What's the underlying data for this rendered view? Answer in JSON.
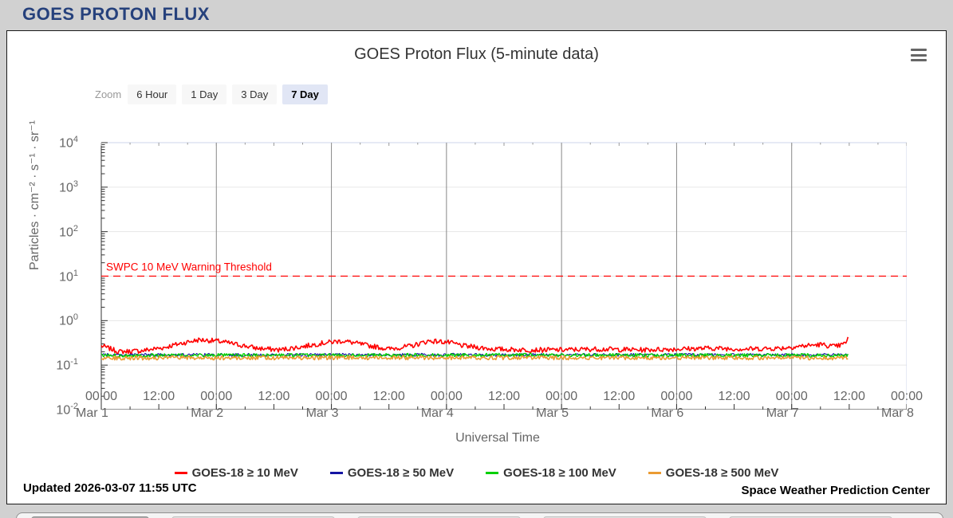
{
  "page": {
    "header_title": "GOES PROTON FLUX",
    "header_color": "#26417c",
    "background_color": "#d1d1d1"
  },
  "panel": {
    "updated": "Updated 2026-03-07 11:55 UTC",
    "credit": "Space Weather Prediction Center",
    "menu_icon": "hamburger-menu-icon"
  },
  "zoom_controls": {
    "label": "Zoom",
    "buttons": [
      {
        "label": "6 Hour",
        "selected": false
      },
      {
        "label": "1 Day",
        "selected": false
      },
      {
        "label": "3 Day",
        "selected": false
      },
      {
        "label": "7 Day",
        "selected": true
      }
    ]
  },
  "chart_data": {
    "type": "line",
    "title": "GOES Proton Flux (5-minute data)",
    "xlabel": "Universal Time",
    "ylabel": "Particles · cm⁻² · s⁻¹ · sr⁻¹",
    "y_axis": {
      "scale": "log",
      "min": 0.01,
      "max": 10000,
      "tick_exponents": [
        4,
        3,
        2,
        1,
        0,
        -1,
        -2
      ],
      "grid": true
    },
    "x_axis": {
      "range_days": 7,
      "grid_at_days": [
        1,
        2,
        3,
        4,
        5,
        6
      ],
      "ticks": [
        {
          "t": 0.0,
          "time": "00:00",
          "date": "Mar 1"
        },
        {
          "t": 0.5,
          "time": "12:00",
          "date": ""
        },
        {
          "t": 1.0,
          "time": "00:00",
          "date": "Mar 2"
        },
        {
          "t": 1.5,
          "time": "12:00",
          "date": ""
        },
        {
          "t": 2.0,
          "time": "00:00",
          "date": "Mar 3"
        },
        {
          "t": 2.5,
          "time": "12:00",
          "date": ""
        },
        {
          "t": 3.0,
          "time": "00:00",
          "date": "Mar 4"
        },
        {
          "t": 3.5,
          "time": "12:00",
          "date": ""
        },
        {
          "t": 4.0,
          "time": "00:00",
          "date": "Mar 5"
        },
        {
          "t": 4.5,
          "time": "12:00",
          "date": ""
        },
        {
          "t": 5.0,
          "time": "00:00",
          "date": "Mar 6"
        },
        {
          "t": 5.5,
          "time": "12:00",
          "date": ""
        },
        {
          "t": 6.0,
          "time": "00:00",
          "date": "Mar 7"
        },
        {
          "t": 6.5,
          "time": "12:00",
          "date": ""
        },
        {
          "t": 7.0,
          "time": "00:00",
          "date": "Mar 8"
        }
      ]
    },
    "threshold": {
      "value": 10,
      "label": "SWPC 10 MeV Warning Threshold",
      "color": "#ff0000"
    },
    "data_start_day": 0,
    "data_end_day": 6.497,
    "series": [
      {
        "name": "GOES-18 ≥ 10 MeV",
        "color": "#ff0000",
        "stroke_width": 1.6,
        "noise_log10": 0.055,
        "seed": 7,
        "profile": [
          [
            0.0,
            0.27
          ],
          [
            0.15,
            0.2
          ],
          [
            0.35,
            0.21
          ],
          [
            0.55,
            0.25
          ],
          [
            0.7,
            0.31
          ],
          [
            0.85,
            0.37
          ],
          [
            1.0,
            0.35
          ],
          [
            1.15,
            0.3
          ],
          [
            1.35,
            0.24
          ],
          [
            1.55,
            0.22
          ],
          [
            1.75,
            0.26
          ],
          [
            1.95,
            0.32
          ],
          [
            2.1,
            0.35
          ],
          [
            2.3,
            0.28
          ],
          [
            2.5,
            0.23
          ],
          [
            2.7,
            0.27
          ],
          [
            2.85,
            0.35
          ],
          [
            3.0,
            0.33
          ],
          [
            3.15,
            0.27
          ],
          [
            3.4,
            0.23
          ],
          [
            3.7,
            0.22
          ],
          [
            4.0,
            0.22
          ],
          [
            4.3,
            0.23
          ],
          [
            4.7,
            0.22
          ],
          [
            5.0,
            0.23
          ],
          [
            5.3,
            0.24
          ],
          [
            5.6,
            0.23
          ],
          [
            5.9,
            0.24
          ],
          [
            6.1,
            0.27
          ],
          [
            6.25,
            0.29
          ],
          [
            6.38,
            0.26
          ],
          [
            6.46,
            0.3
          ],
          [
            6.497,
            0.42
          ]
        ]
      },
      {
        "name": "GOES-18 ≥ 50 MeV",
        "color": "#1515a3",
        "stroke_width": 1.1,
        "noise_log10": 0.035,
        "seed": 19,
        "profile": [
          [
            0.0,
            0.17
          ],
          [
            3.5,
            0.17
          ],
          [
            6.497,
            0.17
          ]
        ]
      },
      {
        "name": "GOES-18 ≥ 100 MeV",
        "color": "#00d000",
        "stroke_width": 1.4,
        "noise_log10": 0.04,
        "seed": 31,
        "profile": [
          [
            0.0,
            0.165
          ],
          [
            3.5,
            0.168
          ],
          [
            6.497,
            0.165
          ]
        ]
      },
      {
        "name": "GOES-18 ≥ 500 MeV",
        "color": "#eb9b32",
        "stroke_width": 1.6,
        "noise_log10": 0.045,
        "seed": 53,
        "profile": [
          [
            0.0,
            0.145
          ],
          [
            3.5,
            0.147
          ],
          [
            6.497,
            0.145
          ]
        ]
      }
    ],
    "legend_position": "bottom",
    "colors": {
      "axis_line": "#333333",
      "major_grid_x": "#888888",
      "grid_y": "#e6e6e6",
      "plot_border": "#ccd6eb",
      "tick_text": "#666666"
    }
  }
}
